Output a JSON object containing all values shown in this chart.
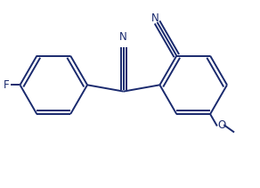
{
  "bg_color": "#ffffff",
  "line_color": "#1a2a6e",
  "line_width": 1.4,
  "font_size": 8.5,
  "figure_size": [
    2.92,
    2.11
  ],
  "dpi": 100,
  "xlim": [
    -0.95,
    1.05
  ],
  "ylim": [
    -0.72,
    0.68
  ]
}
